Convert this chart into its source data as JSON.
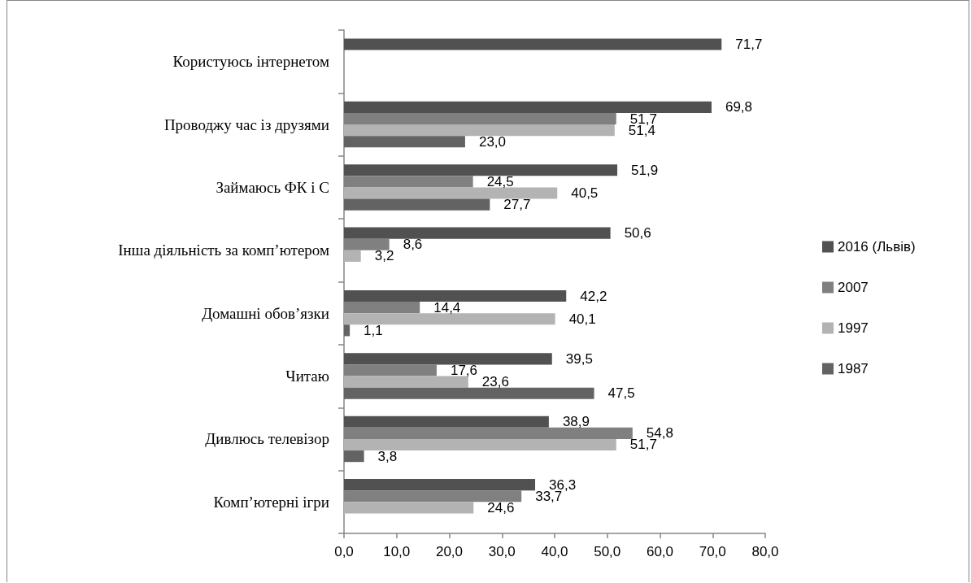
{
  "chart_data": {
    "type": "bar",
    "orientation": "horizontal",
    "categories": [
      "Користуюсь інтернетом",
      "Проводжу час із друзями",
      "Займаюсь ФК і С",
      "Інша діяльність за комп’ютером",
      "Домашні обов’язки",
      "Читаю",
      "Дивлюсь телевізор",
      "Комп’ютерні ігри"
    ],
    "series": [
      {
        "name": "2016 (Львів)",
        "color": "#515151",
        "values": [
          71.7,
          69.8,
          51.9,
          50.6,
          42.2,
          39.5,
          38.9,
          36.3
        ],
        "value_labels": [
          "71,7",
          "69,8",
          "51,9",
          "50,6",
          "42,2",
          "39,5",
          "38,9",
          "36,3"
        ]
      },
      {
        "name": "2007",
        "color": "#808080",
        "values": [
          null,
          51.7,
          24.5,
          8.6,
          14.4,
          17.6,
          54.8,
          33.7
        ],
        "value_labels": [
          null,
          "51,7",
          "24,5",
          "8,6",
          "14,4",
          "17,6",
          "54,8",
          "33,7"
        ]
      },
      {
        "name": "1997",
        "color": "#b3b3b3",
        "values": [
          null,
          51.4,
          40.5,
          3.2,
          40.1,
          23.6,
          51.7,
          24.6
        ],
        "value_labels": [
          null,
          "51,4",
          "40,5",
          "3,2",
          "40,1",
          "23,6",
          "51,7",
          "24,6"
        ]
      },
      {
        "name": "1987",
        "color": "#636363",
        "values": [
          null,
          23.0,
          27.7,
          null,
          1.1,
          47.5,
          3.8,
          null
        ],
        "value_labels": [
          null,
          "23,0",
          "27,7",
          null,
          "1,1",
          "47,5",
          "3,8",
          null
        ]
      }
    ],
    "xlim": [
      0,
      80
    ],
    "xticks": [
      {
        "value": 0,
        "label": "0,0"
      },
      {
        "value": 10,
        "label": "10,0"
      },
      {
        "value": 20,
        "label": "20,0"
      },
      {
        "value": 30,
        "label": "30,0"
      },
      {
        "value": 40,
        "label": "40,0"
      },
      {
        "value": 50,
        "label": "50,0"
      },
      {
        "value": 60,
        "label": "60,0"
      },
      {
        "value": 70,
        "label": "70,0"
      },
      {
        "value": 80,
        "label": "80,0"
      }
    ],
    "grid": false,
    "legend": "right"
  }
}
